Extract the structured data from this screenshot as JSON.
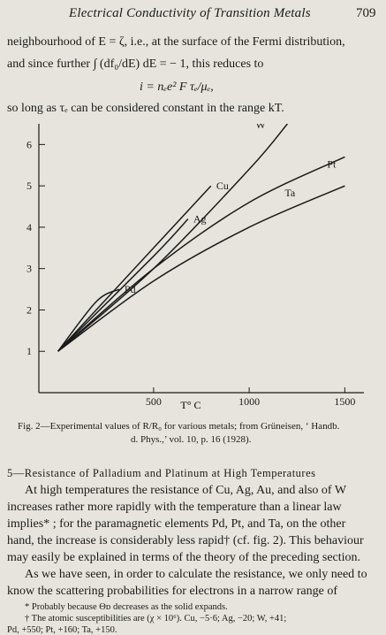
{
  "header": {
    "title": "Electrical Conductivity of Transition Metals",
    "page_number": "709"
  },
  "top_text": {
    "line1": "neighbourhood of E = ζ, i.e., at the surface of the Fermi distribution,",
    "line2": "and since further ∫ (df₀/dE) dE = − 1, this reduces to",
    "formula": "i = nₑe² F τₑ/μₑ,",
    "line3": "so long as τₑ can be considered constant in the range kT."
  },
  "chart_data": {
    "type": "line",
    "title": "",
    "xlabel": "T° C",
    "ylabel": "",
    "xlim": [
      -100,
      1600
    ],
    "ylim": [
      0,
      6.5
    ],
    "x_ticks": [
      500,
      1000,
      1500
    ],
    "y_ticks": [
      1,
      2,
      3,
      4,
      5,
      6
    ],
    "grid": false,
    "series": [
      {
        "name": "W",
        "x": [
          0,
          500,
          1000,
          1200
        ],
        "y": [
          1.0,
          3.0,
          5.4,
          6.5
        ]
      },
      {
        "name": "Cu",
        "x": [
          0,
          500,
          800
        ],
        "y": [
          1.0,
          3.5,
          5.0
        ]
      },
      {
        "name": "Ag",
        "x": [
          0,
          500,
          680
        ],
        "y": [
          1.0,
          3.3,
          4.2
        ]
      },
      {
        "name": "Pt",
        "x": [
          0,
          500,
          1000,
          1500
        ],
        "y": [
          1.0,
          3.0,
          4.6,
          5.7
        ]
      },
      {
        "name": "Ta",
        "x": [
          0,
          500,
          1000,
          1500
        ],
        "y": [
          1.0,
          2.7,
          4.0,
          5.0
        ]
      },
      {
        "name": "Pd",
        "x": [
          0,
          200,
          320
        ],
        "y": [
          1.0,
          2.2,
          2.5
        ]
      }
    ]
  },
  "caption": {
    "line1": "Fig. 2—Experimental values of R/R₀ for various metals;  from Grüneisen, ‘ Handb.",
    "line2": "d. Phys.,’ vol. 10, p. 16 (1928)."
  },
  "section": {
    "heading": "5—Resistance of Palladium and Platinum at High Temperatures",
    "lines": [
      "At high temperatures the resistance of Cu, Ag, Au, and also of W",
      "increases rather more rapidly with the temperature than a linear law",
      "implies* ; for the paramagnetic elements Pd, Pt, and Ta, on the other",
      "hand, the increase is considerably less rapid† (cf. fig. 2).  This behaviour",
      "may easily be explained in terms of the theory of the preceding section.",
      "As we have seen, in order to calculate the resistance, we only need to",
      "know the scattering probabilities for electrons in a narrow range of"
    ]
  },
  "footnotes": {
    "note1": "* Probably because Θᴅ decreases as the solid expands.",
    "note2_line1": "† The atomic susceptibilities are (χ × 10⁶).  Cu,  −5·6;  Ag,  −20;  W,  +41;",
    "note2_line2": "Pd, +550; Pt, +160; Ta, +150."
  }
}
